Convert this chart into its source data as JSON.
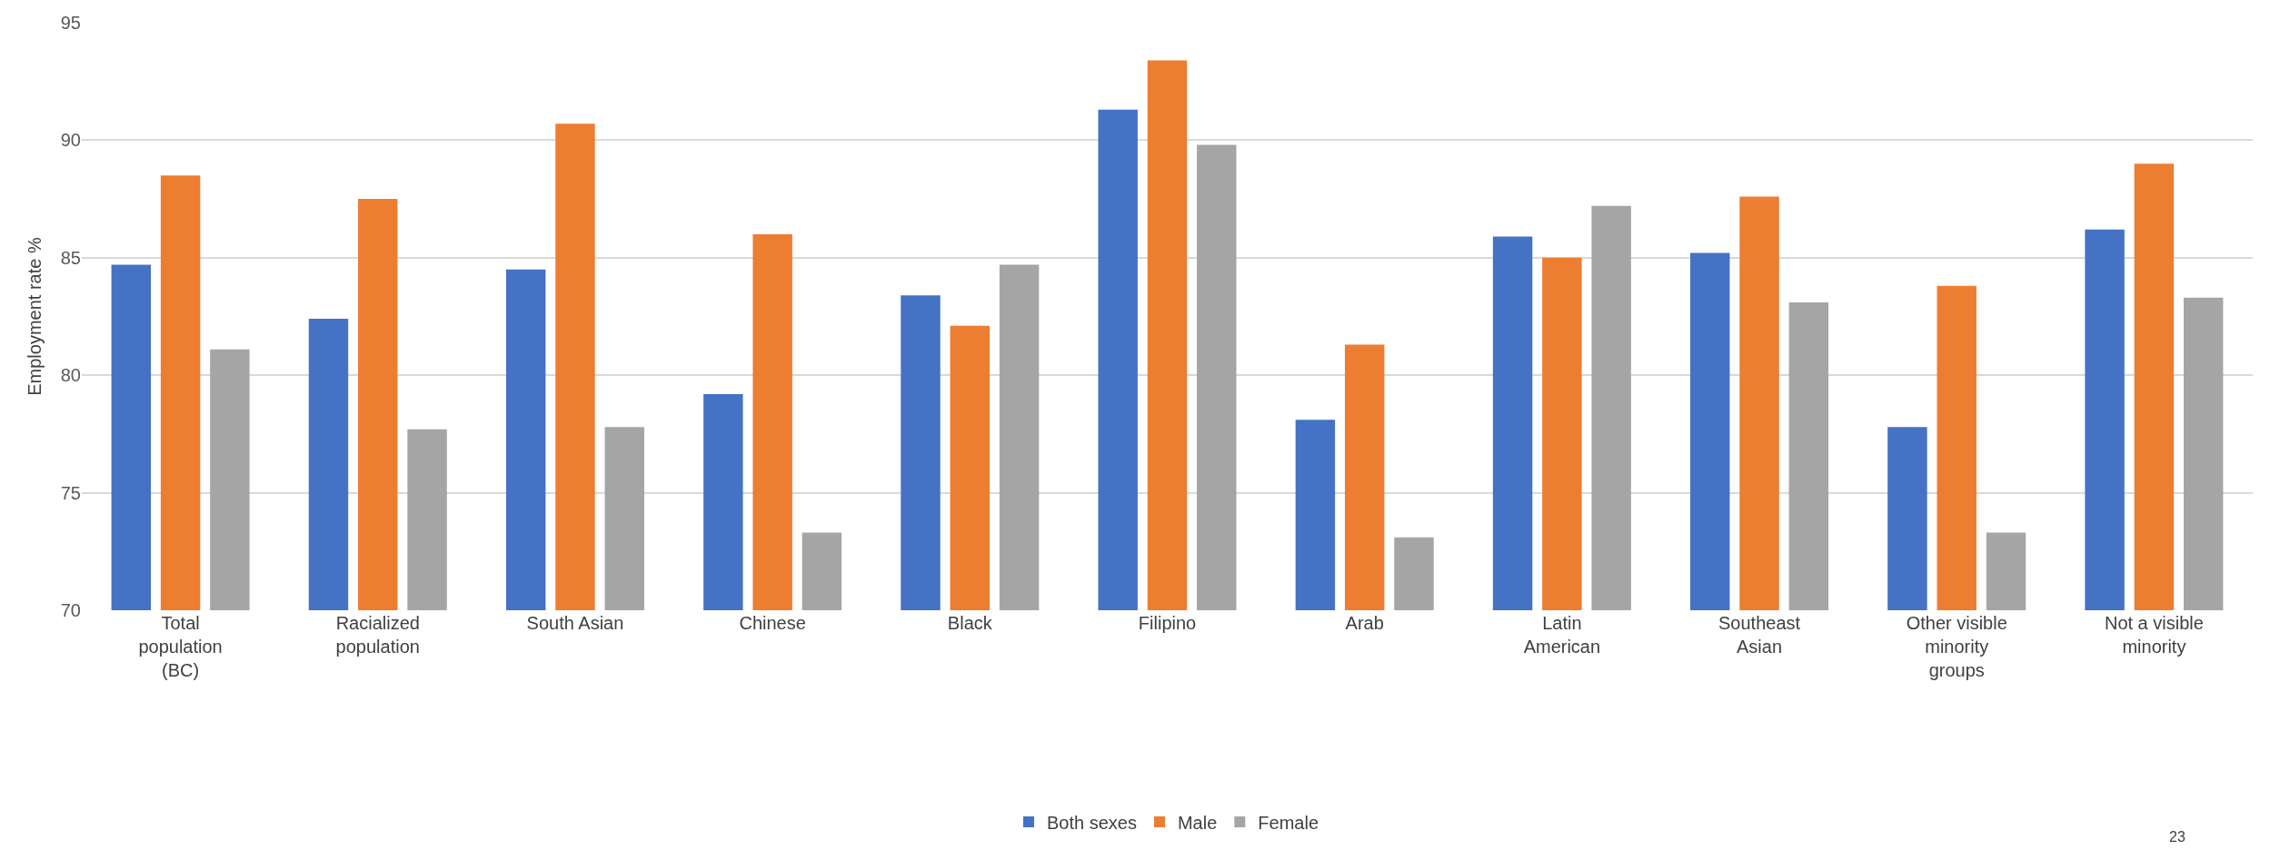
{
  "chart_data": {
    "type": "bar",
    "ylabel": "Employment rate %",
    "categories": [
      "Total population (BC)",
      "Racialized population",
      "South Asian",
      "Chinese",
      "Black",
      "Filipino",
      "Arab",
      "Latin American",
      "Southeast Asian",
      "Other visible minority groups",
      "Not a visible minority"
    ],
    "series": [
      {
        "name": "Both sexes",
        "color": "#4472c4",
        "values": [
          84.7,
          82.4,
          84.5,
          79.2,
          83.4,
          91.3,
          78.1,
          85.9,
          85.2,
          77.8,
          86.2
        ]
      },
      {
        "name": "Male",
        "color": "#ed7d31",
        "values": [
          88.5,
          87.5,
          90.7,
          86.0,
          82.1,
          93.4,
          81.3,
          85.0,
          87.6,
          83.8,
          89.0
        ]
      },
      {
        "name": "Female",
        "color": "#a5a5a5",
        "values": [
          81.1,
          77.7,
          77.8,
          73.3,
          84.7,
          89.8,
          73.1,
          87.2,
          83.1,
          73.3,
          83.3
        ]
      }
    ],
    "ylim": [
      70,
      95
    ],
    "yticks": [
      70,
      75,
      80,
      85,
      90,
      95
    ],
    "grid": "y",
    "legend": "bottom",
    "annotations": [
      "23"
    ]
  }
}
